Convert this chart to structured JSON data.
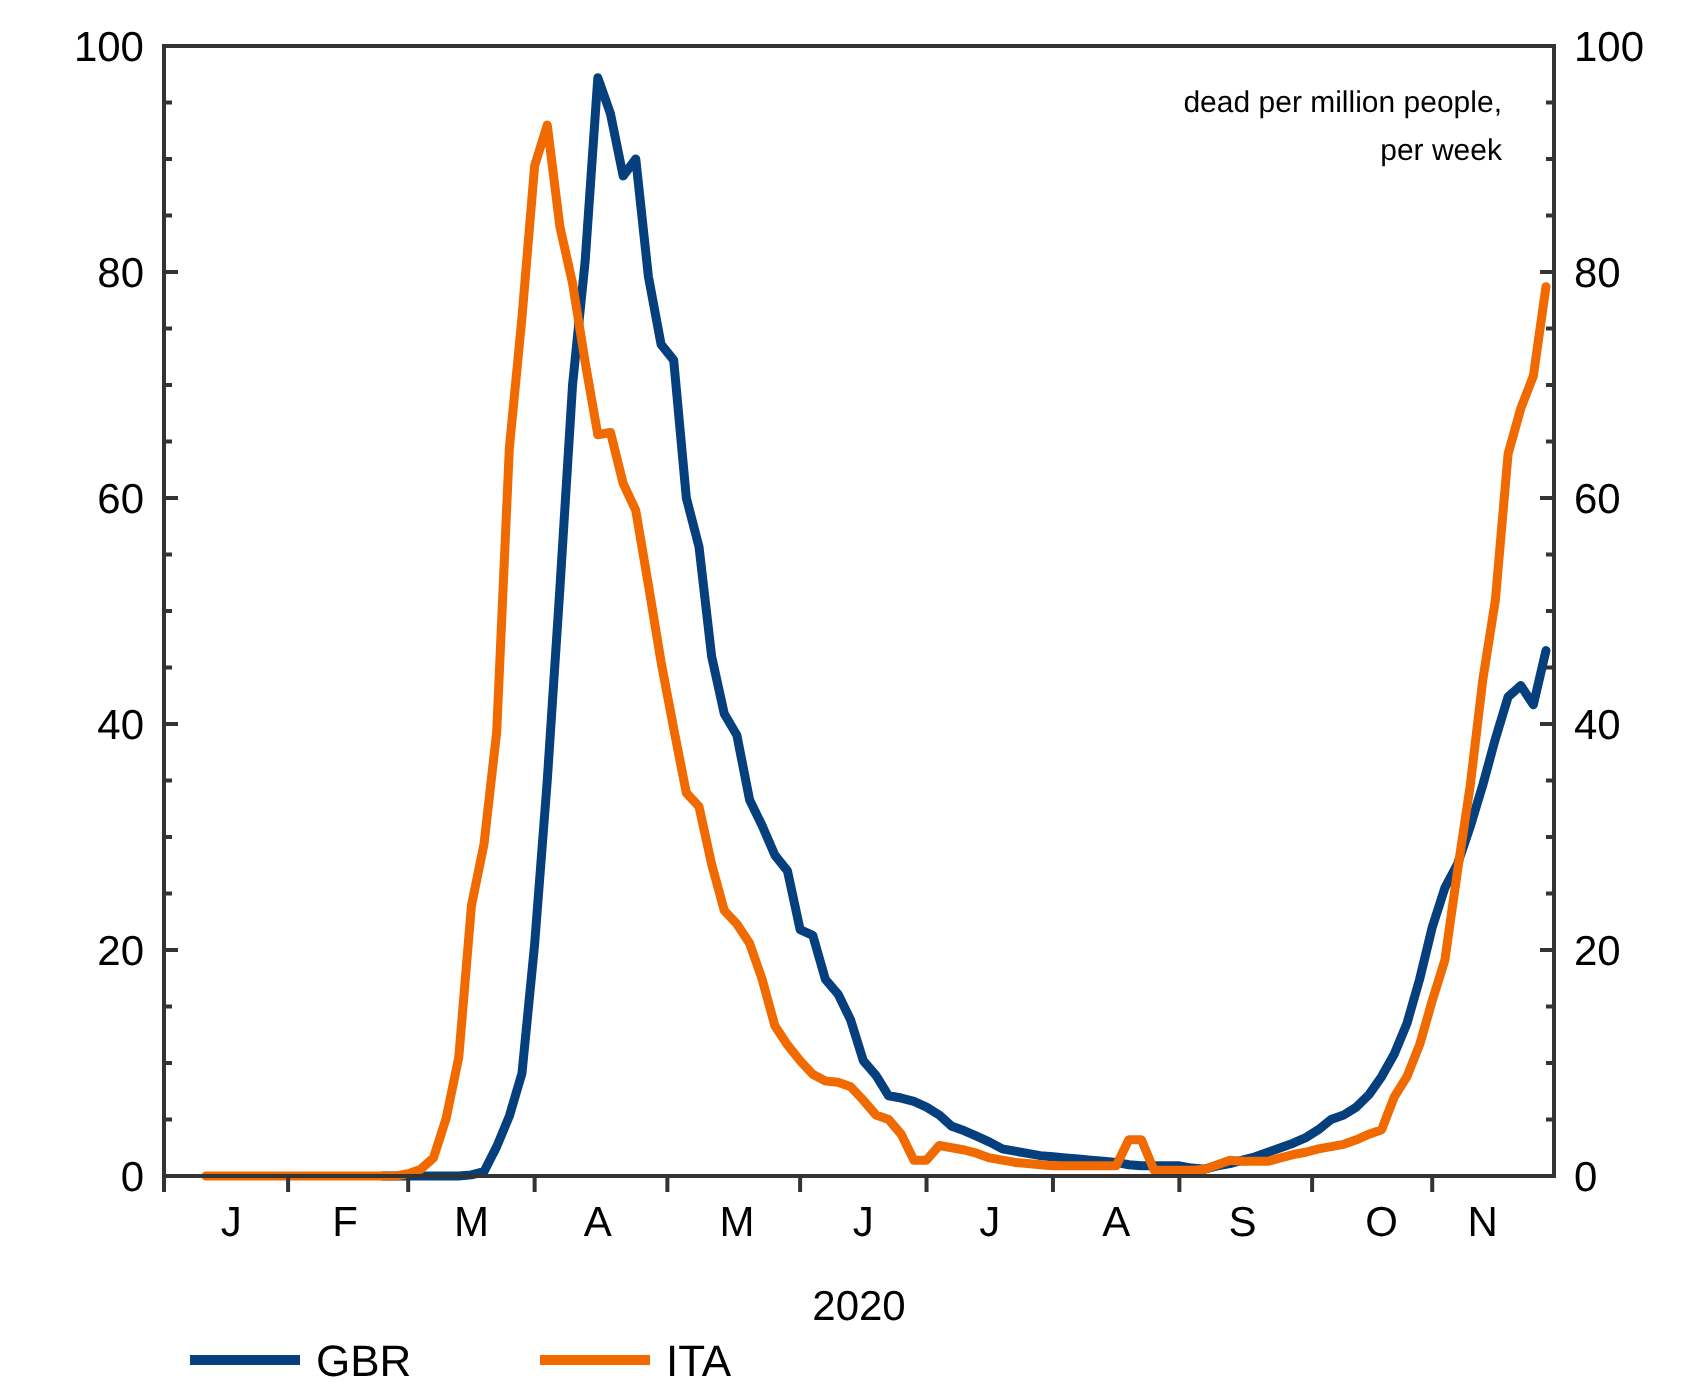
{
  "chart_data": {
    "type": "line",
    "xlabel": "2020",
    "annotations": [
      "dead per million people,\nper week"
    ],
    "categories": [
      null,
      null,
      null,
      null,
      null,
      "J",
      null,
      null,
      null,
      null,
      null,
      null,
      null,
      null,
      "F",
      null,
      null,
      null,
      null,
      null,
      null,
      null,
      null,
      null,
      "M",
      null,
      null,
      null,
      null,
      null,
      null,
      null,
      null,
      null,
      "A",
      null,
      null,
      null,
      null,
      null,
      null,
      null,
      null,
      null,
      null,
      "M",
      null,
      null,
      null,
      null,
      null,
      null,
      null,
      null,
      null,
      "J",
      null,
      null,
      null,
      null,
      null,
      null,
      null,
      null,
      null,
      "J",
      null,
      null,
      null,
      null,
      null,
      null,
      null,
      null,
      null,
      "A",
      null,
      null,
      null,
      null,
      null,
      null,
      null,
      null,
      null,
      "S",
      null,
      null,
      null,
      null,
      null,
      null,
      null,
      null,
      null,
      null,
      "O",
      null,
      null,
      null,
      null,
      null,
      null,
      null,
      "N",
      null,
      null,
      null,
      null,
      null
    ],
    "ylim": [
      0,
      100
    ],
    "yticks": [
      0,
      {
        "value": 5,
        "label": null
      },
      {
        "value": 10,
        "label": null
      },
      {
        "value": 15,
        "label": null
      },
      20,
      {
        "value": 25,
        "label": null
      },
      {
        "value": 30,
        "label": null
      },
      {
        "value": 35,
        "label": null
      },
      40,
      {
        "value": 45,
        "label": null
      },
      {
        "value": 50,
        "label": null
      },
      {
        "value": 55,
        "label": null
      },
      60,
      {
        "value": 65,
        "label": null
      },
      {
        "value": 70,
        "label": null
      },
      {
        "value": 75,
        "label": null
      },
      80,
      {
        "value": 85,
        "label": null
      },
      {
        "value": 90,
        "label": null
      },
      {
        "value": 95,
        "label": null
      },
      100
    ],
    "y2lim": [
      0,
      100
    ],
    "y2ticks": [
      0,
      {
        "value": 5,
        "label": null
      },
      {
        "value": 10,
        "label": null
      },
      {
        "value": 15,
        "label": null
      },
      20,
      {
        "value": 25,
        "label": null
      },
      {
        "value": 30,
        "label": null
      },
      {
        "value": 35,
        "label": null
      },
      40,
      {
        "value": 45,
        "label": null
      },
      {
        "value": 50,
        "label": null
      },
      {
        "value": 55,
        "label": null
      },
      60,
      {
        "value": 65,
        "label": null
      },
      {
        "value": 70,
        "label": null
      },
      {
        "value": 75,
        "label": null
      },
      80,
      {
        "value": 85,
        "label": null
      },
      {
        "value": 90,
        "label": null
      },
      {
        "value": 95,
        "label": null
      },
      100
    ],
    "grid": false,
    "legend": "bottom",
    "marker": "none",
    "line_style": "solid",
    "series": [
      {
        "name": "GBR",
        "color": "#063f7d",
        "values": [
          null,
          null,
          null,
          null,
          null,
          null,
          null,
          null,
          null,
          null,
          null,
          null,
          null,
          null,
          null,
          null,
          null,
          0,
          0,
          0,
          0,
          0,
          0,
          0,
          0.1,
          0.4,
          2.6,
          5.3,
          9.1,
          20.5,
          35,
          52,
          70,
          81,
          97.2,
          94,
          88.5,
          90,
          79.6,
          73.6,
          72.2,
          60,
          55.7,
          46,
          40.9,
          39,
          33.3,
          31,
          28.4,
          27,
          21.8,
          21.3,
          17.4,
          16.1,
          13.8,
          10.2,
          8.9,
          7.1,
          6.9,
          6.6,
          6.1,
          5.4,
          4.4,
          4,
          3.5,
          3,
          2.4,
          2.2,
          2,
          1.8,
          1.7,
          1.6,
          1.5,
          1.4,
          1.3,
          1.2,
          1,
          0.9,
          0.9,
          0.9,
          0.9,
          0.7,
          0.6,
          0.9,
          1.1,
          1.4,
          1.7,
          2.1,
          2.5,
          2.9,
          3.4,
          4.1,
          5,
          5.4,
          6.1,
          7.2,
          8.8,
          10.8,
          13.5,
          17.4,
          22,
          25.5,
          27.6,
          30.9,
          34.6,
          38.7,
          42.4,
          43.4,
          41.7,
          46.5
        ]
      },
      {
        "name": "ITA",
        "color": "#f06a00",
        "values": [
          null,
          null,
          null,
          0,
          0,
          0,
          0,
          0,
          0,
          0,
          0,
          0,
          0,
          0,
          0,
          0,
          0,
          0,
          0,
          0.2,
          0.6,
          1.6,
          5.1,
          10.5,
          23.9,
          29.4,
          39.3,
          64.4,
          76,
          89.4,
          93,
          84,
          79,
          72,
          65.6,
          65.8,
          61.3,
          58.9,
          52.3,
          45.5,
          39.6,
          33.9,
          32.7,
          27.6,
          23.5,
          22.3,
          20.6,
          17.4,
          13.3,
          11.6,
          10.2,
          9,
          8.4,
          8.3,
          7.9,
          6.7,
          5.4,
          5,
          3.7,
          1.4,
          1.4,
          2.7,
          2.5,
          2.3,
          2,
          1.6,
          1.4,
          1.2,
          1.1,
          1,
          0.9,
          0.9,
          0.9,
          0.9,
          0.9,
          0.9,
          3.2,
          3.2,
          0.5,
          0.5,
          0.5,
          0.5,
          0.6,
          1,
          1.4,
          1.3,
          1.3,
          1.3,
          1.6,
          1.9,
          2.1,
          2.4,
          2.6,
          2.8,
          3.2,
          3.7,
          4.1,
          7,
          8.8,
          11.6,
          15.5,
          19.1,
          27,
          34.5,
          43.9,
          51,
          63.9,
          67.9,
          70.8,
          78.7
        ]
      }
    ]
  }
}
